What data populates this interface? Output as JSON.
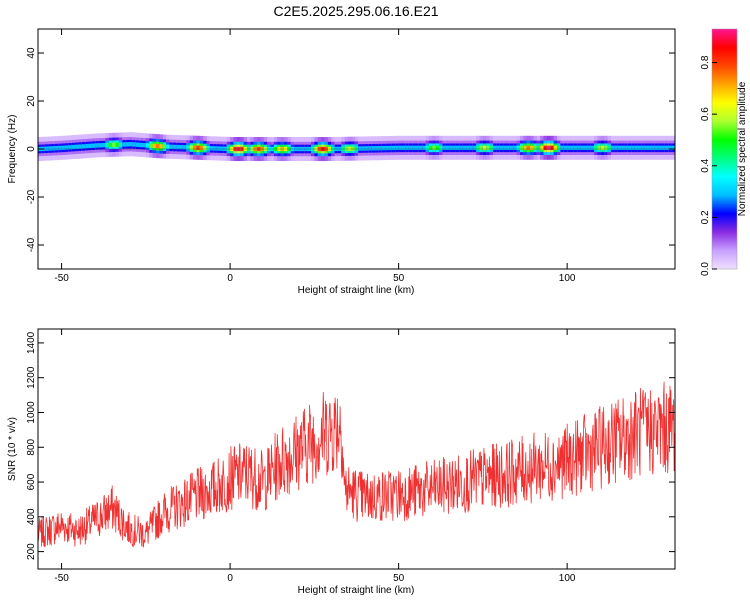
{
  "title": "C2E5.2025.295.06.16.E21",
  "chart_data": [
    {
      "type": "heatmap",
      "xlabel": "Height of straight line (km)",
      "ylabel": "Frequency (Hz)",
      "xlim": [
        -57,
        132
      ],
      "ylim": [
        -50,
        50
      ],
      "xticks": [
        -50,
        0,
        50,
        100
      ],
      "yticks": [
        -40,
        -20,
        0,
        20,
        40
      ],
      "colorbar": {
        "label": "Normalized spectral amplitude",
        "range": [
          0,
          0.93
        ],
        "ticks": [
          0.0,
          0.2,
          0.4,
          0.6,
          0.8
        ],
        "tick_labels": [
          "0.0",
          "0.2",
          "0.4",
          "0.6",
          "0.8"
        ],
        "colormap": [
          "#f0e0ff",
          "#c8a0ff",
          "#8a2be2",
          "#0000ff",
          "#00bfff",
          "#00ffff",
          "#00ff7f",
          "#00ff00",
          "#adff2f",
          "#ffff00",
          "#ffa500",
          "#ff4500",
          "#ff0000",
          "#ff1493"
        ]
      },
      "band": {
        "center_hz": [
          [
            -57,
            0
          ],
          [
            -50,
            0.5
          ],
          [
            -40,
            1.5
          ],
          [
            -30,
            2
          ],
          [
            -20,
            1
          ],
          [
            -10,
            0.5
          ],
          [
            0,
            0
          ],
          [
            10,
            0
          ],
          [
            30,
            0
          ],
          [
            50,
            0.5
          ],
          [
            70,
            0.5
          ],
          [
            90,
            0.5
          ],
          [
            110,
            0.5
          ],
          [
            132,
            0.5
          ]
        ],
        "peaks": [
          {
            "x": -35,
            "amp": 0.55
          },
          {
            "x": -22,
            "amp": 0.75
          },
          {
            "x": -10,
            "amp": 0.8
          },
          {
            "x": 2,
            "amp": 0.9
          },
          {
            "x": 8,
            "amp": 0.8
          },
          {
            "x": 15,
            "amp": 0.7
          },
          {
            "x": 27,
            "amp": 0.85
          },
          {
            "x": 35,
            "amp": 0.6
          },
          {
            "x": 60,
            "amp": 0.55
          },
          {
            "x": 75,
            "amp": 0.6
          },
          {
            "x": 88,
            "amp": 0.75
          },
          {
            "x": 94,
            "amp": 0.93
          },
          {
            "x": 110,
            "amp": 0.6
          }
        ]
      },
      "grid": false
    },
    {
      "type": "line",
      "xlabel": "Height of straight line (km)",
      "ylabel": "SNR (10 * v/v)",
      "xlim": [
        -57,
        132
      ],
      "ylim": [
        100,
        1480
      ],
      "xticks": [
        -50,
        0,
        50,
        100
      ],
      "yticks": [
        200,
        400,
        600,
        800,
        1000,
        1200,
        1400
      ],
      "color": "#f03030",
      "series": [
        {
          "x": [
            -57,
            -50,
            -45,
            -40,
            -35,
            -30,
            -25,
            -20,
            -15,
            -10,
            -5,
            0,
            5,
            10,
            15,
            20,
            25,
            30,
            33,
            34,
            40,
            50,
            60,
            70,
            80,
            90,
            100,
            110,
            120,
            132
          ],
          "values": [
            300,
            350,
            320,
            380,
            450,
            330,
            300,
            420,
            470,
            520,
            560,
            620,
            650,
            600,
            720,
            780,
            850,
            900,
            950,
            560,
            510,
            530,
            560,
            600,
            640,
            680,
            720,
            800,
            880,
            920
          ]
        }
      ],
      "grid": false
    }
  ]
}
